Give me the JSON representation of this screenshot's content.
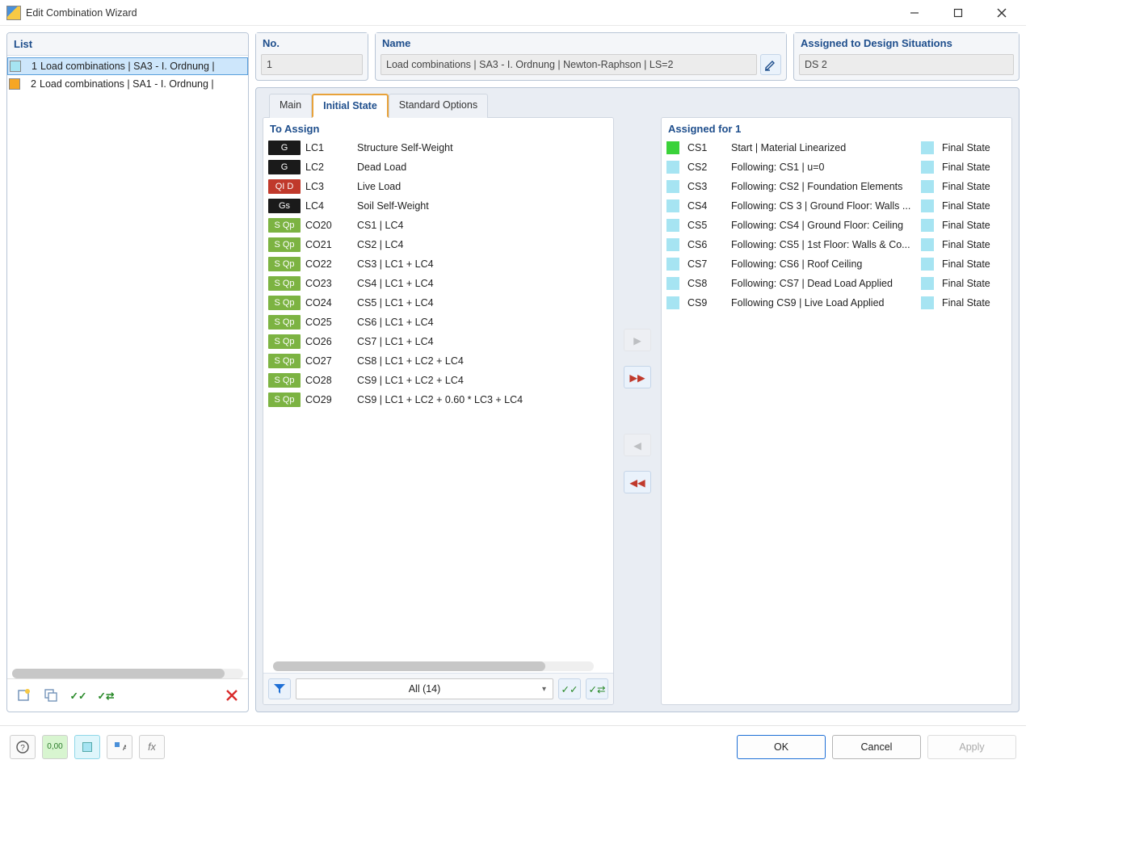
{
  "window": {
    "title": "Edit Combination Wizard"
  },
  "list": {
    "header": "List",
    "items": [
      {
        "idx": "1",
        "swatch": "cyan",
        "text": "Load combinations | SA3 - I. Ordnung |",
        "selected": true
      },
      {
        "idx": "2",
        "swatch": "orange",
        "text": "Load combinations | SA1 - I. Ordnung |",
        "selected": false
      }
    ]
  },
  "headers": {
    "no_label": "No.",
    "no_value": "1",
    "name_label": "Name",
    "name_value": "Load combinations | SA3 - I. Ordnung | Newton-Raphson | LS=2",
    "assigned_label": "Assigned to Design Situations",
    "assigned_value": "DS 2"
  },
  "tabs": {
    "items": [
      "Main",
      "Initial State",
      "Standard Options"
    ],
    "active_index": 1
  },
  "to_assign": {
    "header": "To Assign",
    "rows": [
      {
        "badge": "G",
        "badge_cls": "b-black",
        "code": "LC1",
        "desc": "Structure Self-Weight"
      },
      {
        "badge": "G",
        "badge_cls": "b-black",
        "code": "LC2",
        "desc": "Dead Load"
      },
      {
        "badge": "QI D",
        "badge_cls": "b-red",
        "code": "LC3",
        "desc": "Live Load"
      },
      {
        "badge": "Gs",
        "badge_cls": "b-black",
        "code": "LC4",
        "desc": "Soil Self-Weight"
      },
      {
        "badge": "S Qp",
        "badge_cls": "b-green",
        "code": "CO20",
        "desc": "CS1 | LC4"
      },
      {
        "badge": "S Qp",
        "badge_cls": "b-green",
        "code": "CO21",
        "desc": "CS2 | LC4"
      },
      {
        "badge": "S Qp",
        "badge_cls": "b-green",
        "code": "CO22",
        "desc": "CS3 | LC1 + LC4"
      },
      {
        "badge": "S Qp",
        "badge_cls": "b-green",
        "code": "CO23",
        "desc": "CS4 | LC1 + LC4"
      },
      {
        "badge": "S Qp",
        "badge_cls": "b-green",
        "code": "CO24",
        "desc": "CS5 | LC1 + LC4"
      },
      {
        "badge": "S Qp",
        "badge_cls": "b-green",
        "code": "CO25",
        "desc": "CS6 | LC1 + LC4"
      },
      {
        "badge": "S Qp",
        "badge_cls": "b-green",
        "code": "CO26",
        "desc": "CS7 | LC1 + LC4"
      },
      {
        "badge": "S Qp",
        "badge_cls": "b-green",
        "code": "CO27",
        "desc": "CS8 | LC1 + LC2 + LC4"
      },
      {
        "badge": "S Qp",
        "badge_cls": "b-green",
        "code": "CO28",
        "desc": "CS9 | LC1 + LC2 + LC4"
      },
      {
        "badge": "S Qp",
        "badge_cls": "b-green",
        "code": "CO29",
        "desc": "CS9 | LC1 + LC2 + 0.60 * LC3 + LC4"
      }
    ],
    "filter_label": "All (14)"
  },
  "assigned_for": {
    "header": "Assigned for 1",
    "rows": [
      {
        "chip": "green",
        "code": "CS1",
        "desc": "Start | Material Linearized",
        "state": "Final State"
      },
      {
        "chip": "cyan",
        "code": "CS2",
        "desc": "Following: CS1 | u=0",
        "state": "Final State"
      },
      {
        "chip": "cyan",
        "code": "CS3",
        "desc": "Following: CS2 | Foundation Elements",
        "state": "Final State"
      },
      {
        "chip": "cyan",
        "code": "CS4",
        "desc": "Following: CS 3 | Ground Floor: Walls ...",
        "state": "Final State"
      },
      {
        "chip": "cyan",
        "code": "CS5",
        "desc": "Following: CS4 | Ground Floor: Ceiling",
        "state": "Final State"
      },
      {
        "chip": "cyan",
        "code": "CS6",
        "desc": "Following: CS5 | 1st Floor: Walls & Co...",
        "state": "Final State"
      },
      {
        "chip": "cyan",
        "code": "CS7",
        "desc": "Following: CS6 | Roof Ceiling",
        "state": "Final State"
      },
      {
        "chip": "cyan",
        "code": "CS8",
        "desc": "Following: CS7 | Dead Load Applied",
        "state": "Final State"
      },
      {
        "chip": "cyan",
        "code": "CS9",
        "desc": "Following CS9 | Live Load Applied",
        "state": "Final State"
      }
    ]
  },
  "buttons": {
    "ok": "OK",
    "cancel": "Cancel",
    "apply": "Apply"
  },
  "colors": {
    "accent": "#1e4e8c",
    "tab_highlight": "#e8a23a",
    "badge_black": "#1a1a1a",
    "badge_red": "#c0392b",
    "badge_green": "#7cb342",
    "chip_cyan": "#a6e4f2",
    "chip_green": "#3ad23a"
  }
}
